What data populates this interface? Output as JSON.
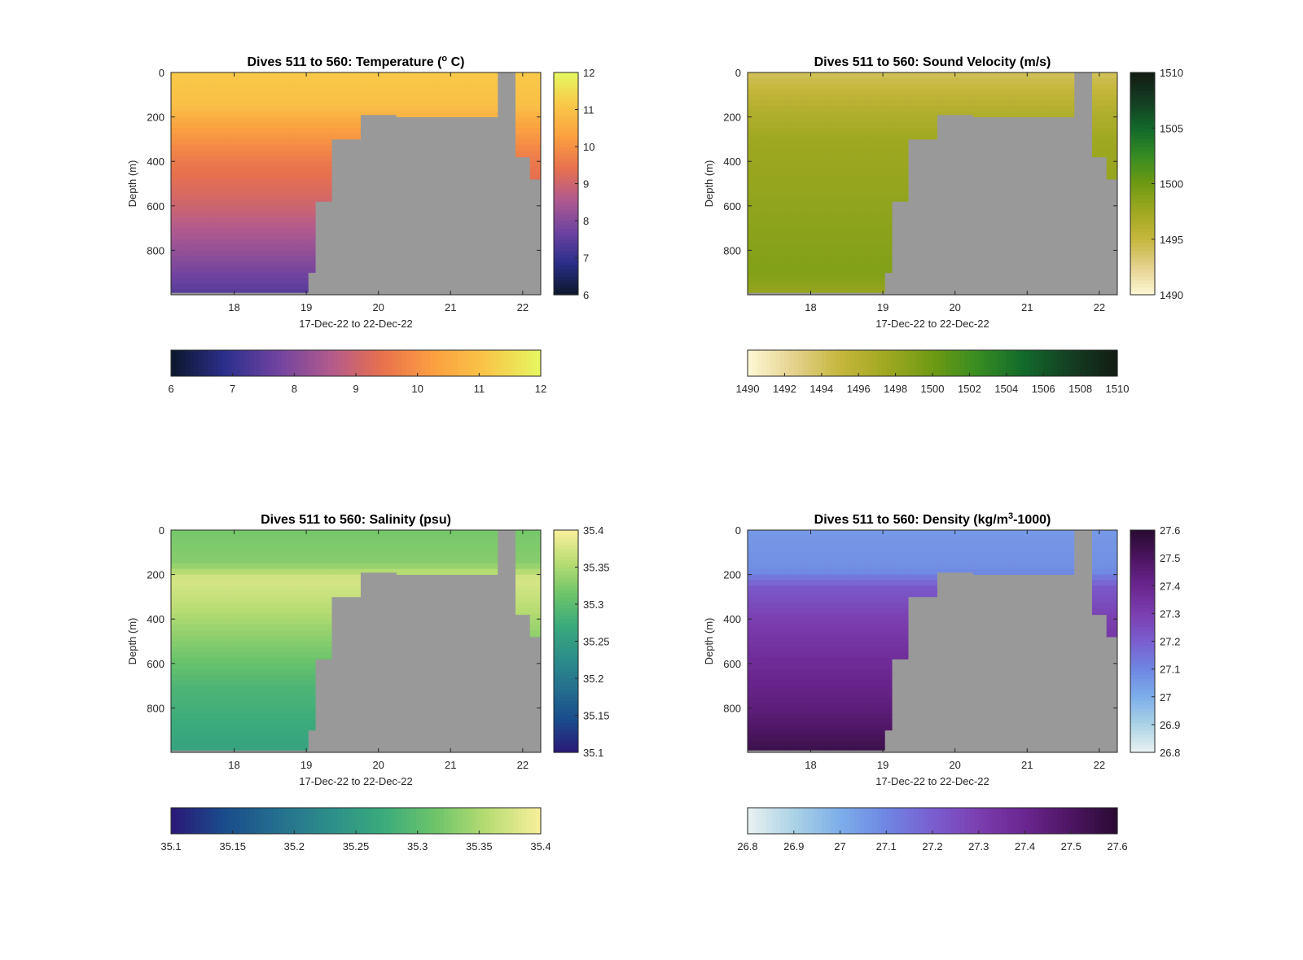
{
  "figure": {
    "panels": [
      {
        "title_main": "Dives 511 to 560: Temperature (",
        "title_sup": "o",
        "title_end": " C)",
        "colormap": [
          "#0d1830",
          "#2c2f8c",
          "#7043a0",
          "#b05a8e",
          "#e8704e",
          "#fba040",
          "#f9c648",
          "#e6f560"
        ],
        "clim": [
          6,
          12
        ],
        "vbar_ticks": [
          "6",
          "7",
          "8",
          "9",
          "10",
          "11",
          "12"
        ],
        "hbar_ticks": [
          "6",
          "7",
          "8",
          "9",
          "10",
          "11",
          "12"
        ]
      },
      {
        "title_main": "Dives 511 to 560: Sound Velocity (m/s)",
        "title_sup": "",
        "title_end": "",
        "colormap": [
          "#fcf6d2",
          "#e3d08a",
          "#c5b63b",
          "#9fa821",
          "#6f9a13",
          "#378c22",
          "#126a2b",
          "#143f23",
          "#121d13"
        ],
        "clim": [
          1490,
          1510
        ],
        "vbar_ticks": [
          "1490",
          "1495",
          "1500",
          "1505",
          "1510"
        ],
        "hbar_ticks": [
          "1490",
          "1492",
          "1494",
          "1496",
          "1498",
          "1500",
          "1502",
          "1504",
          "1506",
          "1508",
          "1510"
        ]
      },
      {
        "title_main": "Dives 511 to 560: Salinity (psu)",
        "title_sup": "",
        "title_end": "",
        "colormap": [
          "#2a1a78",
          "#1a4d8c",
          "#246f8e",
          "#2d8e8a",
          "#3aaa7c",
          "#6cc46a",
          "#b6dc72",
          "#f6ee9a"
        ],
        "clim": [
          35.1,
          35.4
        ],
        "vbar_ticks": [
          "35.1",
          "35.15",
          "35.2",
          "35.25",
          "35.3",
          "35.35",
          "35.4"
        ],
        "hbar_ticks": [
          "35.1",
          "35.15",
          "35.2",
          "35.25",
          "35.3",
          "35.35",
          "35.4"
        ]
      },
      {
        "title_main": "Dives 511 to 560: Density (kg/m",
        "title_sup": "3",
        "title_end": "-1000)",
        "colormap": [
          "#e6f0f0",
          "#a9d1e6",
          "#7cadea",
          "#6f86e2",
          "#7a5ed0",
          "#7b3fb0",
          "#6b2690",
          "#4e1664",
          "#2b0b34"
        ],
        "clim": [
          26.8,
          27.6
        ],
        "vbar_ticks": [
          "26.8",
          "26.9",
          "27",
          "27.1",
          "27.2",
          "27.3",
          "27.4",
          "27.5",
          "27.6"
        ],
        "hbar_ticks": [
          "26.8",
          "26.9",
          "27",
          "27.1",
          "27.2",
          "27.3",
          "27.4",
          "27.5",
          "27.6"
        ]
      }
    ],
    "ylabel": "Depth (m)",
    "xlabel": "17-Dec-22 to 22-Dec-22",
    "no_data_color": "#999999"
  },
  "chart_data": [
    {
      "type": "heatmap",
      "title": "Dives 511 to 560: Temperature (o C)",
      "ylabel": "Depth (m)",
      "xlabel": "17-Dec-22 to 22-Dec-22",
      "x_ticks": [
        "18",
        "19",
        "20",
        "21",
        "22"
      ],
      "y_ticks": [
        "0",
        "200",
        "400",
        "600",
        "800"
      ],
      "xlim": [
        "2022-12-17 03:00",
        "2022-12-22 06:00"
      ],
      "ylim": [
        1000,
        0
      ],
      "clim": [
        6,
        12
      ],
      "profiles": {
        "time_days_dec": [
          17.2,
          17.5,
          17.8,
          18.1,
          18.4,
          18.7,
          19.0,
          19.05,
          19.2,
          19.5,
          20.0,
          20.5,
          21.0,
          21.5,
          21.8,
          22.0,
          22.2
        ],
        "max_depth_m": [
          990,
          990,
          990,
          990,
          990,
          990,
          990,
          900,
          580,
          300,
          190,
          200,
          200,
          200,
          0,
          380,
          480
        ]
      },
      "value_by_depth": {
        "depth_m": [
          0,
          150,
          250,
          400,
          600,
          800,
          990
        ],
        "value": [
          11.2,
          11.0,
          10.3,
          9.6,
          9.0,
          8.2,
          7.4
        ]
      }
    },
    {
      "type": "heatmap",
      "title": "Dives 511 to 560: Sound Velocity (m/s)",
      "ylabel": "Depth (m)",
      "xlabel": "17-Dec-22 to 22-Dec-22",
      "x_ticks": [
        "18",
        "19",
        "20",
        "21",
        "22"
      ],
      "y_ticks": [
        "0",
        "200",
        "400",
        "600",
        "800"
      ],
      "xlim": [
        "2022-12-17 03:00",
        "2022-12-22 06:00"
      ],
      "ylim": [
        1000,
        0
      ],
      "clim": [
        1490,
        1510
      ],
      "profiles": {
        "time_days_dec": [
          17.2,
          17.5,
          17.8,
          18.1,
          18.4,
          18.7,
          19.0,
          19.05,
          19.2,
          19.5,
          20.0,
          20.5,
          21.0,
          21.5,
          21.8,
          22.0,
          22.2
        ],
        "max_depth_m": [
          990,
          990,
          990,
          990,
          990,
          990,
          990,
          900,
          580,
          300,
          190,
          200,
          200,
          200,
          0,
          380,
          480
        ]
      },
      "value_by_depth": {
        "depth_m": [
          0,
          150,
          300,
          500,
          700,
          900,
          990
        ],
        "value": [
          1494,
          1496,
          1497.5,
          1498,
          1498.5,
          1499,
          1498
        ]
      }
    },
    {
      "type": "heatmap",
      "title": "Dives 511 to 560: Salinity (psu)",
      "ylabel": "Depth (m)",
      "xlabel": "17-Dec-22 to 22-Dec-22",
      "x_ticks": [
        "18",
        "19",
        "20",
        "21",
        "22"
      ],
      "y_ticks": [
        "0",
        "200",
        "400",
        "600",
        "800"
      ],
      "xlim": [
        "2022-12-17 03:00",
        "2022-12-22 06:00"
      ],
      "ylim": [
        1000,
        0
      ],
      "clim": [
        35.1,
        35.4
      ],
      "profiles": {
        "time_days_dec": [
          17.2,
          17.5,
          17.8,
          18.1,
          18.4,
          18.7,
          19.0,
          19.05,
          19.2,
          19.5,
          20.0,
          20.5,
          21.0,
          21.5,
          21.8,
          22.0,
          22.2
        ],
        "max_depth_m": [
          990,
          990,
          990,
          990,
          990,
          990,
          990,
          900,
          580,
          300,
          190,
          200,
          200,
          200,
          0,
          380,
          480
        ]
      },
      "value_by_depth": {
        "depth_m": [
          0,
          150,
          220,
          350,
          500,
          700,
          990
        ],
        "value": [
          35.32,
          35.33,
          35.38,
          35.36,
          35.33,
          35.29,
          35.26
        ]
      }
    },
    {
      "type": "heatmap",
      "title": "Dives 511 to 560: Density (kg/m3-1000)",
      "ylabel": "Depth (m)",
      "xlabel": "17-Dec-22 to 22-Dec-22",
      "x_ticks": [
        "18",
        "19",
        "20",
        "21",
        "22"
      ],
      "y_ticks": [
        "0",
        "200",
        "400",
        "600",
        "800"
      ],
      "xlim": [
        "2022-12-17 03:00",
        "2022-12-22 06:00"
      ],
      "ylim": [
        1000,
        0
      ],
      "clim": [
        26.8,
        27.6
      ],
      "profiles": {
        "time_days_dec": [
          17.2,
          17.5,
          17.8,
          18.1,
          18.4,
          18.7,
          19.0,
          19.05,
          19.2,
          19.5,
          20.0,
          20.5,
          21.0,
          21.5,
          21.8,
          22.0,
          22.2
        ],
        "max_depth_m": [
          990,
          990,
          990,
          990,
          990,
          990,
          990,
          900,
          580,
          300,
          190,
          200,
          200,
          200,
          0,
          380,
          480
        ]
      },
      "value_by_depth": {
        "depth_m": [
          0,
          180,
          260,
          400,
          600,
          800,
          990
        ],
        "value": [
          27.05,
          27.08,
          27.22,
          27.3,
          27.38,
          27.45,
          27.55
        ]
      }
    }
  ]
}
